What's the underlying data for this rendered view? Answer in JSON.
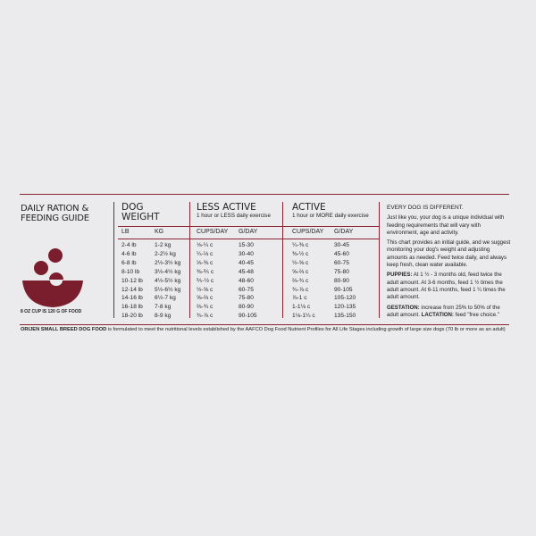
{
  "colors": {
    "accent": "#7a1e2e",
    "background": "#ebebed"
  },
  "left": {
    "title_line1": "DAILY RATION &",
    "title_line2": "FEEDING GUIDE",
    "cup_note": "8 OZ CUP IS 120 G OF FOOD",
    "icon": "food-bowl-icon"
  },
  "weight": {
    "title_line1": "DOG",
    "title_line2": "WEIGHT",
    "col_lb": "LB",
    "col_kg": "KG",
    "lb": [
      "2-4 lb",
      "4-6 lb",
      "6-8 lb",
      "8-10 lb",
      "10-12 lb",
      "12-14 lb",
      "14-16 lb",
      "16-18 lb",
      "18-20 lb"
    ],
    "kg": [
      "1-2 kg",
      "2-2½ kg",
      "2½-3½ kg",
      "3½-4½ kg",
      "4½-5½ kg",
      "5½-6½ kg",
      "6½-7 kg",
      "7-8 kg",
      "8-9 kg"
    ]
  },
  "less_active": {
    "title": "LESS ACTIVE",
    "subtitle": "1 hour or LESS daily exercise",
    "col_cups": "CUPS/DAY",
    "col_g": "G/DAY",
    "cups": [
      "⅛-¼ c",
      "¼-⅓ c",
      "⅓-⅜ c",
      "⅜-⅖ c",
      "⅖-½ c",
      "½-⅝ c",
      "⅝-⅔ c",
      "⅔-¾ c",
      "¾-⅞ c"
    ],
    "g": [
      "15-30",
      "30-40",
      "40-45",
      "45-48",
      "48-60",
      "60-75",
      "75-80",
      "80-90",
      "90-105"
    ]
  },
  "active": {
    "title": "ACTIVE",
    "subtitle": "1 hour or MORE daily exercise",
    "col_cups": "CUPS/DAY",
    "col_g": "G/DAY",
    "cups": [
      "¼-⅜ c",
      "⅜-½ c",
      "½-⅝ c",
      "⅝-⅔ c",
      "⅔-¾ c",
      "¾-⅞ c",
      "⅞-1 c",
      "1-1⅛ c",
      "1⅛-1¼ c"
    ],
    "g": [
      "30-45",
      "45-60",
      "60-75",
      "75-80",
      "80-90",
      "90-105",
      "105-120",
      "120-135",
      "135-150"
    ]
  },
  "notes": {
    "heading": "EVERY DOG IS DIFFERENT.",
    "p1": "Just like you, your dog is a unique individual with feeding requirements that will vary with environment, age and activity.",
    "p2": "This chart provides an initial guide, and we suggest monitoring your dog's weight and adjusting amounts as needed. Feed twice daily, and always keep fresh, clean water available.",
    "puppies_label": "PUPPIES:",
    "puppies_text": " At 1 ½ - 3 months old, feed twice the adult amount. At 3-6 months, feed 1 ½ times the adult amount. At 6-11 months, feed 1 ¼ times the adult amount.",
    "gestation_label": "GESTATION:",
    "gestation_text": " increase from 25% to 50% of the adult amount. ",
    "lactation_label": "LACTATION:",
    "lactation_text": " feed \"free choice.\""
  },
  "footer": {
    "brand": "ORIJEN SMALL BREED DOG FOOD",
    "text": " is formulated to meet the nutritional levels established by the AAFCO Dog Food Nutrient Profiles for All Life Stages including growth of large size dogs (70 lb or more as an adult)"
  }
}
